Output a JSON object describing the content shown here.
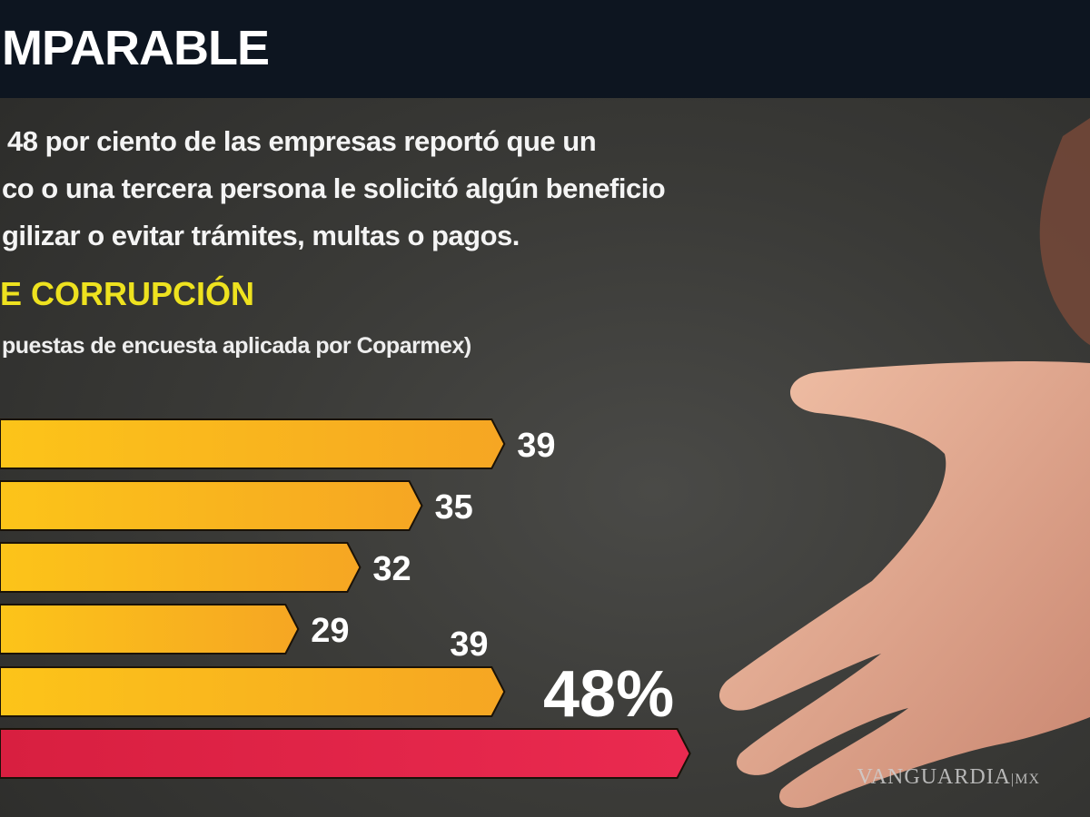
{
  "header": {
    "title": "MPARABLE"
  },
  "intro_lines": [
    "48 por ciento de las empresas reportó que un",
    "co o una tercera persona le solicitó algún beneficio",
    "gilizar o evitar trámites, multas o pagos."
  ],
  "section_title": "E CORRUPCIÓN",
  "subtitle": "puestas de encuesta aplicada por Coparmex)",
  "watermark": {
    "brand": "VANGUARDIA",
    "suffix": "MX"
  },
  "colors": {
    "bar": "#f7b51a",
    "highlight_bar": "#e42348",
    "header_bg": "#0d1520",
    "section_title": "#eee21f"
  },
  "chart_data": {
    "type": "bar",
    "orientation": "horizontal",
    "values": [
      39,
      35,
      32,
      29,
      39,
      48
    ],
    "labels": [
      "39",
      "35",
      "32",
      "29",
      "39",
      "48%"
    ],
    "highlight_index": 5
  }
}
